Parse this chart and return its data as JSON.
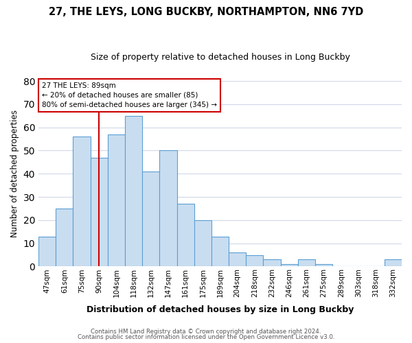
{
  "title": "27, THE LEYS, LONG BUCKBY, NORTHAMPTON, NN6 7YD",
  "subtitle": "Size of property relative to detached houses in Long Buckby",
  "xlabel": "Distribution of detached houses by size in Long Buckby",
  "ylabel": "Number of detached properties",
  "bar_color": "#c9ddf0",
  "bar_edge_color": "#5a9fd4",
  "categories": [
    "47sqm",
    "61sqm",
    "75sqm",
    "90sqm",
    "104sqm",
    "118sqm",
    "132sqm",
    "147sqm",
    "161sqm",
    "175sqm",
    "189sqm",
    "204sqm",
    "218sqm",
    "232sqm",
    "246sqm",
    "261sqm",
    "275sqm",
    "289sqm",
    "303sqm",
    "318sqm",
    "332sqm"
  ],
  "values": [
    13,
    25,
    56,
    47,
    57,
    65,
    41,
    50,
    27,
    20,
    13,
    6,
    5,
    3,
    1,
    3,
    1,
    0,
    0,
    0,
    3
  ],
  "ylim": [
    0,
    80
  ],
  "yticks": [
    0,
    10,
    20,
    30,
    40,
    50,
    60,
    70,
    80
  ],
  "vline_index": 3,
  "vline_color": "#cc0000",
  "annotation_line1": "27 THE LEYS: 89sqm",
  "annotation_line2": "← 20% of detached houses are smaller (85)",
  "annotation_line3": "80% of semi-detached houses are larger (345) →",
  "annotation_box_color": "#ffffff",
  "annotation_box_edge": "#cc0000",
  "footer1": "Contains HM Land Registry data © Crown copyright and database right 2024.",
  "footer2": "Contains public sector information licensed under the Open Government Licence v3.0.",
  "background_color": "#ffffff",
  "grid_color": "#d0d8e8"
}
